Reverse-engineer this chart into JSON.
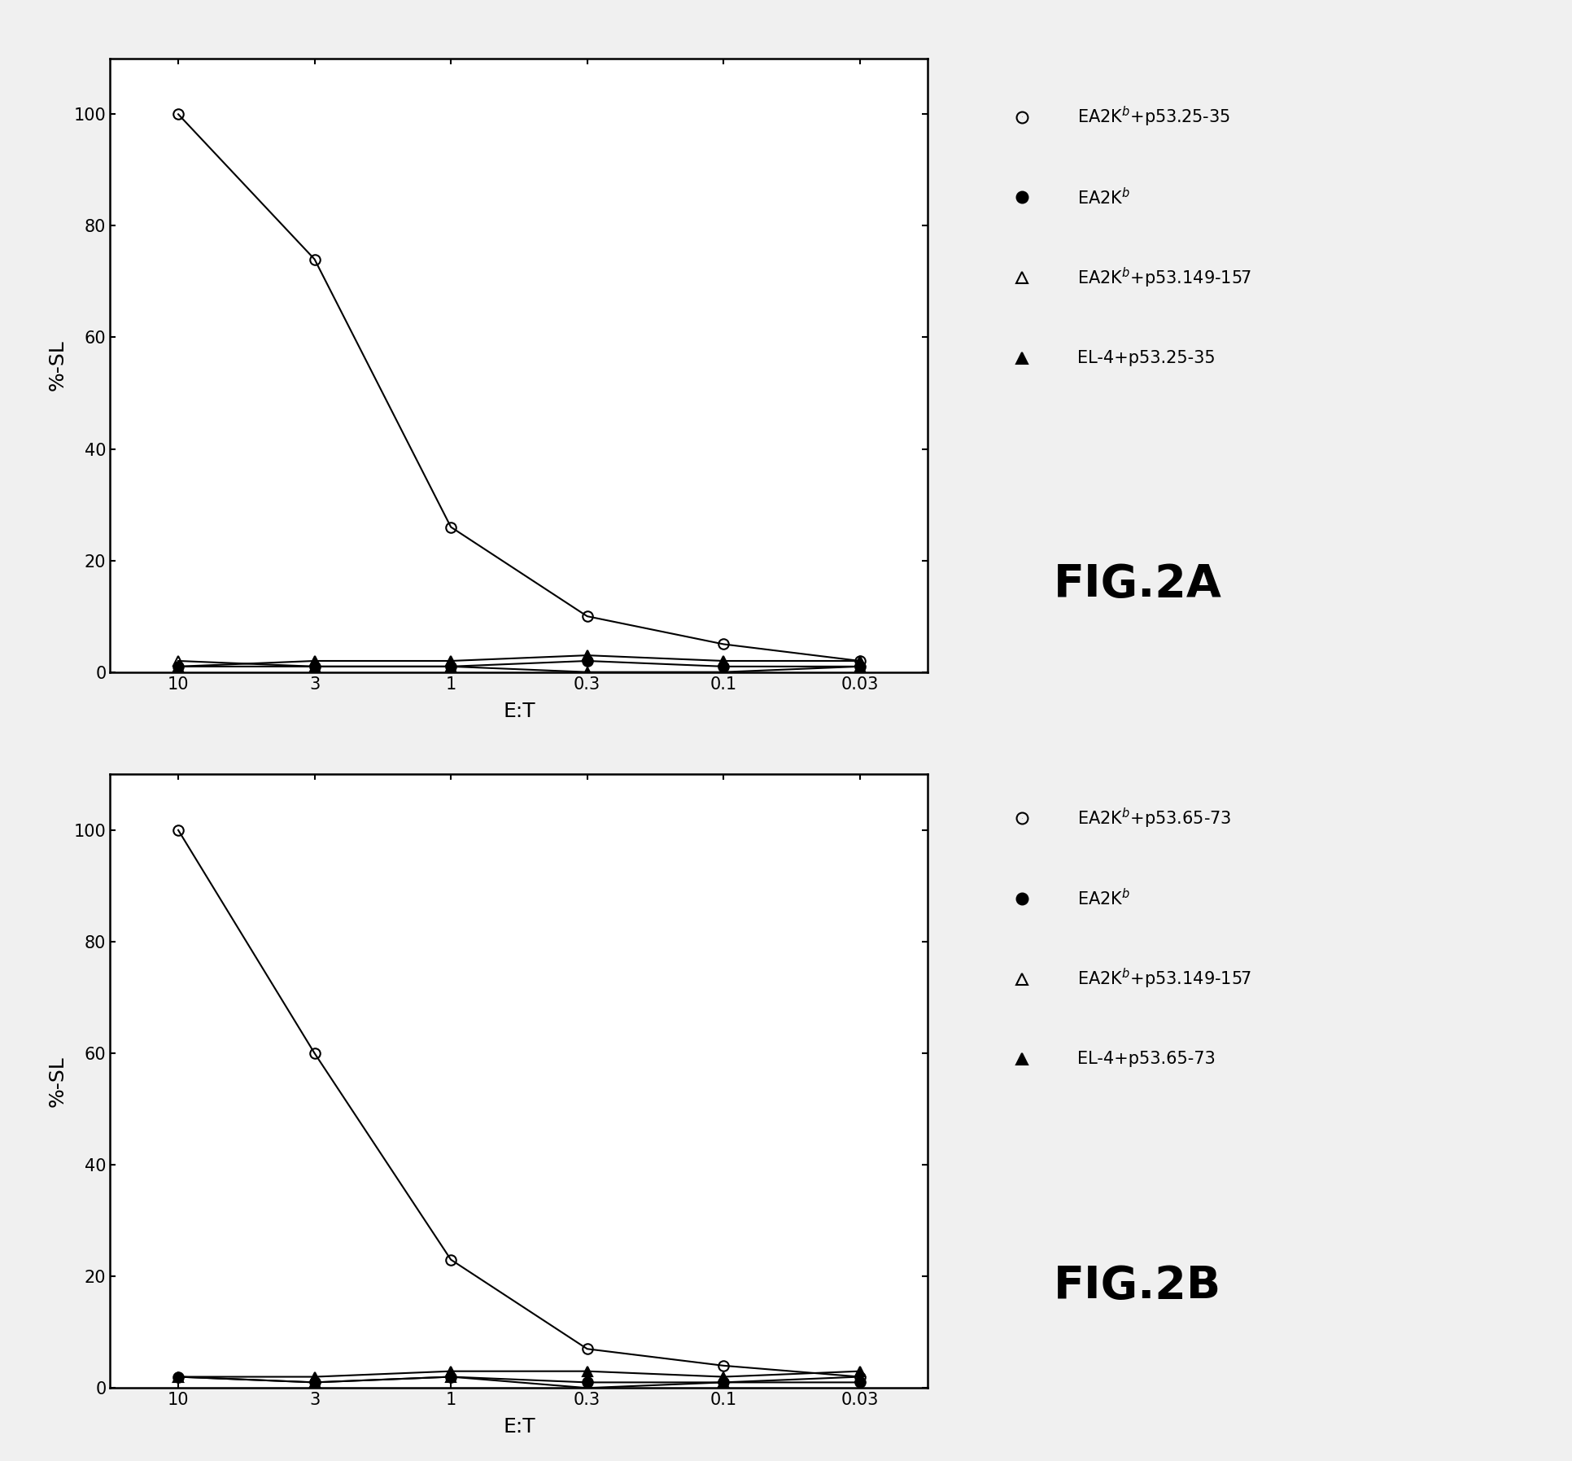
{
  "x_labels": [
    "10",
    "3",
    "1",
    "0.3",
    "0.1",
    "0.03"
  ],
  "x_positions": [
    0,
    1,
    2,
    3,
    4,
    5
  ],
  "panel_A": {
    "series": [
      {
        "label": "EA2K$^b$+p53.25-35",
        "y": [
          100,
          74,
          26,
          10,
          5,
          2
        ],
        "marker": "o",
        "fillstyle": "none",
        "color": "black",
        "linewidth": 1.5,
        "markersize": 9
      },
      {
        "label": "EA2K$^b$",
        "y": [
          1,
          1,
          1,
          2,
          1,
          1
        ],
        "marker": "o",
        "fillstyle": "full",
        "color": "black",
        "linewidth": 1.5,
        "markersize": 9
      },
      {
        "label": "EA2K$^b$+p53.149-157",
        "y": [
          2,
          1,
          1,
          0,
          0,
          1
        ],
        "marker": "^",
        "fillstyle": "none",
        "color": "black",
        "linewidth": 1.5,
        "markersize": 9
      },
      {
        "label": "EL-4+p53.25-35",
        "y": [
          1,
          2,
          2,
          3,
          2,
          2
        ],
        "marker": "^",
        "fillstyle": "full",
        "color": "black",
        "linewidth": 1.5,
        "markersize": 9
      }
    ],
    "fig_label": "FIG.2A",
    "ylabel": "%-SL",
    "xlabel": "E:T",
    "ylim": [
      0,
      110
    ],
    "yticks": [
      0,
      20,
      40,
      60,
      80,
      100
    ]
  },
  "panel_B": {
    "series": [
      {
        "label": "EA2K$^b$+p53.65-73",
        "y": [
          100,
          60,
          23,
          7,
          4,
          2
        ],
        "marker": "o",
        "fillstyle": "none",
        "color": "black",
        "linewidth": 1.5,
        "markersize": 9
      },
      {
        "label": "EA2K$^b$",
        "y": [
          2,
          1,
          2,
          1,
          1,
          1
        ],
        "marker": "o",
        "fillstyle": "full",
        "color": "black",
        "linewidth": 1.5,
        "markersize": 9
      },
      {
        "label": "EA2K$^b$+p53.149-157",
        "y": [
          2,
          1,
          2,
          0,
          1,
          2
        ],
        "marker": "^",
        "fillstyle": "none",
        "color": "black",
        "linewidth": 1.5,
        "markersize": 9
      },
      {
        "label": "EL-4+p53.65-73",
        "y": [
          2,
          2,
          3,
          3,
          2,
          3
        ],
        "marker": "^",
        "fillstyle": "full",
        "color": "black",
        "linewidth": 1.5,
        "markersize": 9
      }
    ],
    "fig_label": "FIG.2B",
    "ylabel": "%-SL",
    "xlabel": "E:T",
    "ylim": [
      0,
      110
    ],
    "yticks": [
      0,
      20,
      40,
      60,
      80,
      100
    ]
  },
  "background_color": "#f0f0f0",
  "legend_fontsize": 15,
  "axis_label_fontsize": 18,
  "tick_fontsize": 15,
  "fig_label_fontsize": 40
}
